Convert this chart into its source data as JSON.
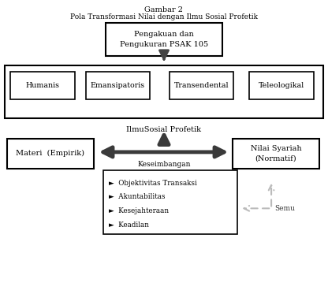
{
  "title_line1": "Gambar 2",
  "title_line2": "Pola Transformasi Nilai dengan Ilmu Sosial Profetik",
  "top_box_text": "Pengakuan dan\nPengukuran PSAK 105",
  "four_boxes": [
    "Humanis",
    "Emansipatoris",
    "Transendental",
    "Teleologikal"
  ],
  "ilmu_label": "IlmuSosial Profetik",
  "left_box": "Materi  (Empirik)",
  "right_box": "Nilai Syariah\n(Normatif)",
  "balance_label": "Keseimbangan",
  "semu_label": "Semu",
  "bullet_items": [
    "►  Objektivitas Transaksi",
    "►  Akuntabilitas",
    "►  Kesejahteraan",
    "►  Keadilan"
  ],
  "bg_color": "#ffffff"
}
